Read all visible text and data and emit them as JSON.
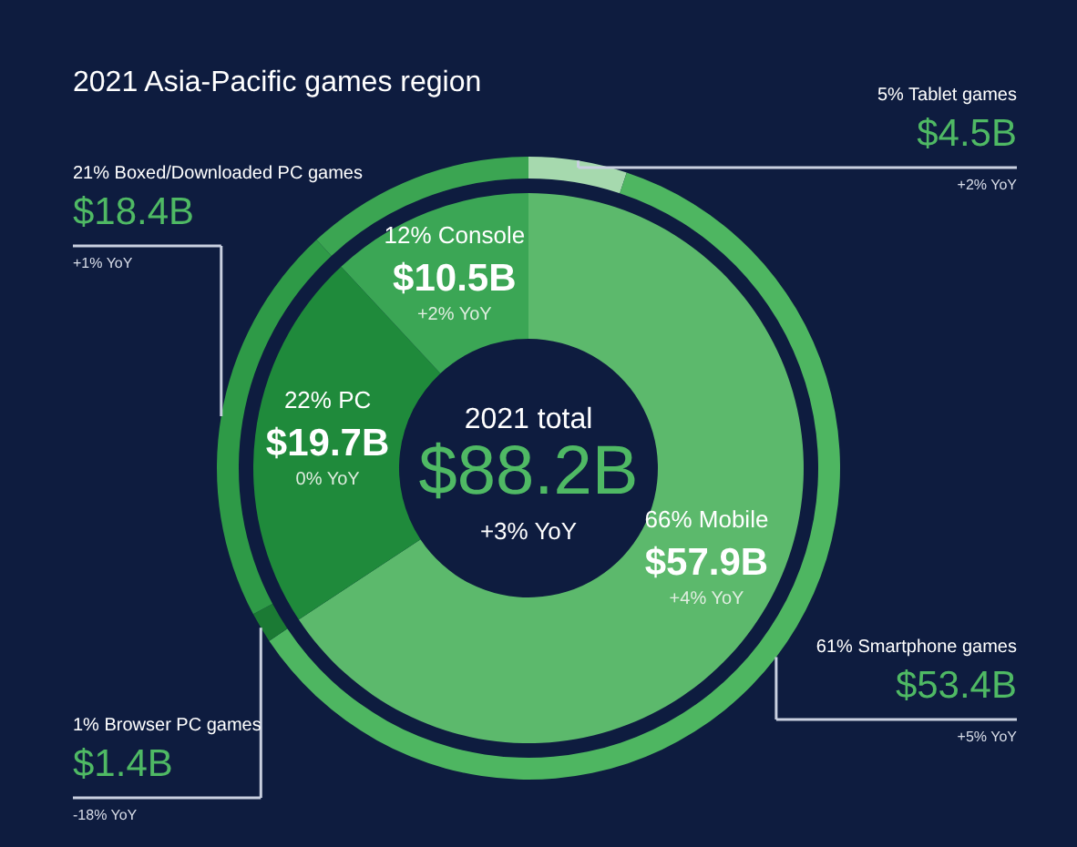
{
  "chart_data": [
    {
      "type": "donut",
      "title": "2021 Asia-Pacific games region",
      "categories": [
        "66% Mobile",
        "22% PC",
        "12% Console"
      ],
      "values": [
        57.9,
        19.7,
        10.5
      ],
      "colors": [
        "#5cb96c",
        "#1f8a3b",
        "#3ba655"
      ],
      "value_labels": [
        "$57.9B",
        "$19.7B",
        "$10.5B"
      ],
      "annotations": [
        "2021 total",
        "$88.2B",
        "+3% YoY",
        {
          "text": "+4% YoY",
          "x": "66% Mobile"
        },
        {
          "text": "0% YoY",
          "x": "22% PC"
        },
        {
          "text": "+2% YoY",
          "x": "12% Console"
        }
      ]
    },
    {
      "type": "donut",
      "categories": [
        "5% Tablet games",
        "61% Smartphone games",
        "1% Browser PC games",
        "21% Boxed/Downloaded PC games",
        null
      ],
      "values": [
        4.5,
        53.4,
        1.4,
        18.4,
        10.5
      ],
      "colors": [
        "#a6d9ae",
        "#4eb661",
        "#1b7a34",
        "#2e9a47",
        "#3ba552"
      ],
      "value_labels": [
        "$4.5B",
        "$53.4B",
        "$1.4B",
        "$18.4B",
        null
      ],
      "annotations": [
        {
          "text": "+2% YoY",
          "x": "5% Tablet games"
        },
        {
          "text": "+5% YoY",
          "x": "61% Smartphone games"
        },
        {
          "text": "-18% YoY",
          "x": "1% Browser PC games"
        },
        {
          "text": "+1% YoY",
          "x": "21% Boxed/Downloaded PC games"
        }
      ]
    }
  ]
}
